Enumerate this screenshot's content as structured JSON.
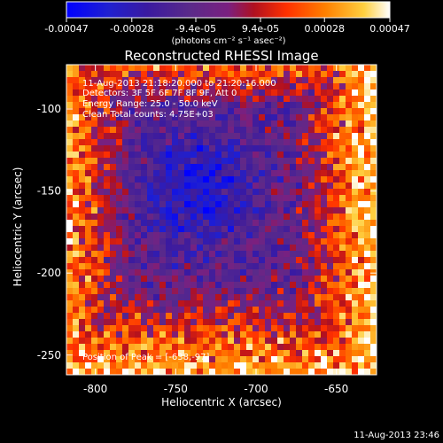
{
  "chart_data": {
    "type": "heatmap",
    "title": "Reconstructed RHESSI Image",
    "xlabel": "Heliocentric X (arcsec)",
    "ylabel": "Heliocentric Y (arcsec)",
    "xlim": [
      -818,
      -625
    ],
    "ylim": [
      -262,
      -73
    ],
    "x_ticks": [
      -800,
      -750,
      -700,
      -650
    ],
    "y_ticks": [
      -100,
      -150,
      -200,
      -250
    ],
    "colorbar": {
      "range": [
        -0.00047,
        0.00047
      ],
      "tick_values": [
        -0.00047,
        -0.00028,
        -9.4e-05,
        9.4e-05,
        0.00028,
        0.00047
      ],
      "tick_labels": [
        "-0.00047",
        "-0.00028",
        "-9.4e-05",
        "9.4e-05",
        "0.00028",
        "0.00047"
      ],
      "unit_label": "(photons cm⁻² s⁻¹ asec⁻²)",
      "colormap": [
        "#0000ff",
        "#3a1aa0",
        "#5a2a8a",
        "#7a2080",
        "#c01010",
        "#ff3000",
        "#ff8000",
        "#ffd040",
        "#ffffff"
      ]
    },
    "annotations": {
      "time_range": "11-Aug-2013 21:18:20.000 to 21:20:16.000",
      "detectors": "Detectors: 3F 5F 6F 7F 8F 9F, Att 0",
      "energy_range": "Energy Range: 25.0 - 50.0 keV",
      "algorithm_counts": "Clean     Total counts: 4.75E+03",
      "peak_position": "Position of Peak = [-638,-97]"
    },
    "peak": {
      "x": -638,
      "y": -97
    },
    "grid": false
  },
  "footer": {
    "timestamp": "11-Aug-2013 23:46"
  }
}
